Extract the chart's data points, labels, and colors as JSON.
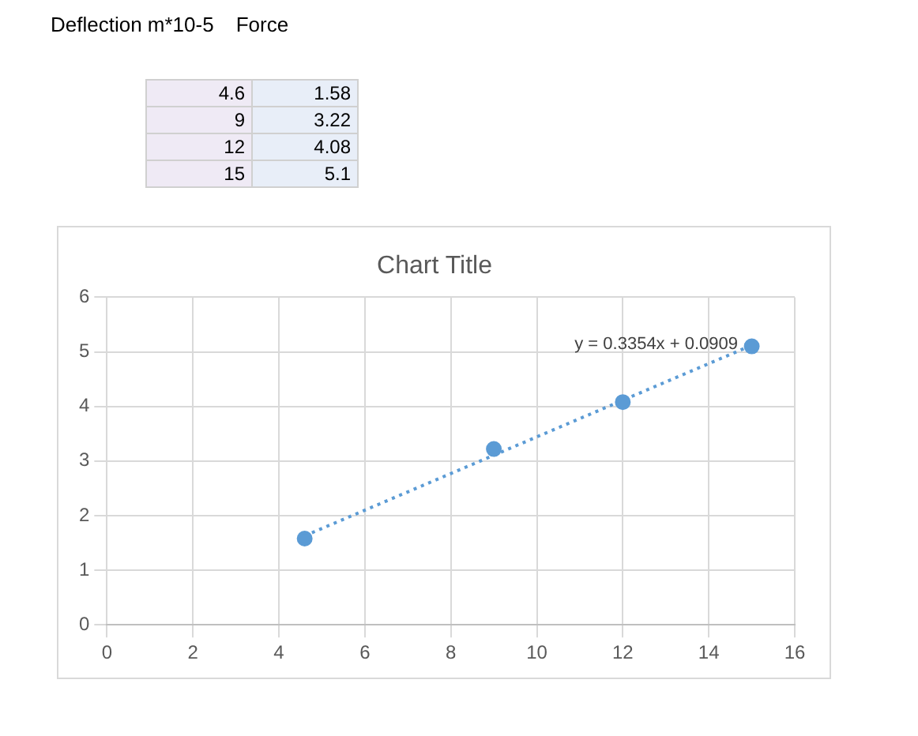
{
  "chart_data": {
    "type": "scatter",
    "title": "Chart Title",
    "x": [
      4.6,
      9,
      12,
      15
    ],
    "series": [
      {
        "values": [
          1.58,
          3.22,
          4.08,
          5.1
        ],
        "color": "#5b9bd5",
        "marker": "circle"
      },
      {
        "type": "line",
        "x": [
          4.6,
          15
        ],
        "values": [
          1.63,
          5.12
        ],
        "color": "#5b9bd5",
        "line_style": "dotted",
        "marker": "none"
      }
    ],
    "xlim": [
      0,
      16
    ],
    "xticks": [
      0,
      2,
      4,
      6,
      8,
      10,
      12,
      14,
      16
    ],
    "ylim": [
      0,
      6
    ],
    "yticks": [
      0,
      1,
      2,
      3,
      4,
      5,
      6
    ],
    "grid": true,
    "annotations": [
      "Deflection m*10-5",
      "Force",
      "4.6",
      "1.58",
      "9",
      "3.22",
      "12",
      "4.08",
      "15",
      "5.1",
      "y = 0.3354x + 0.0909"
    ]
  }
}
